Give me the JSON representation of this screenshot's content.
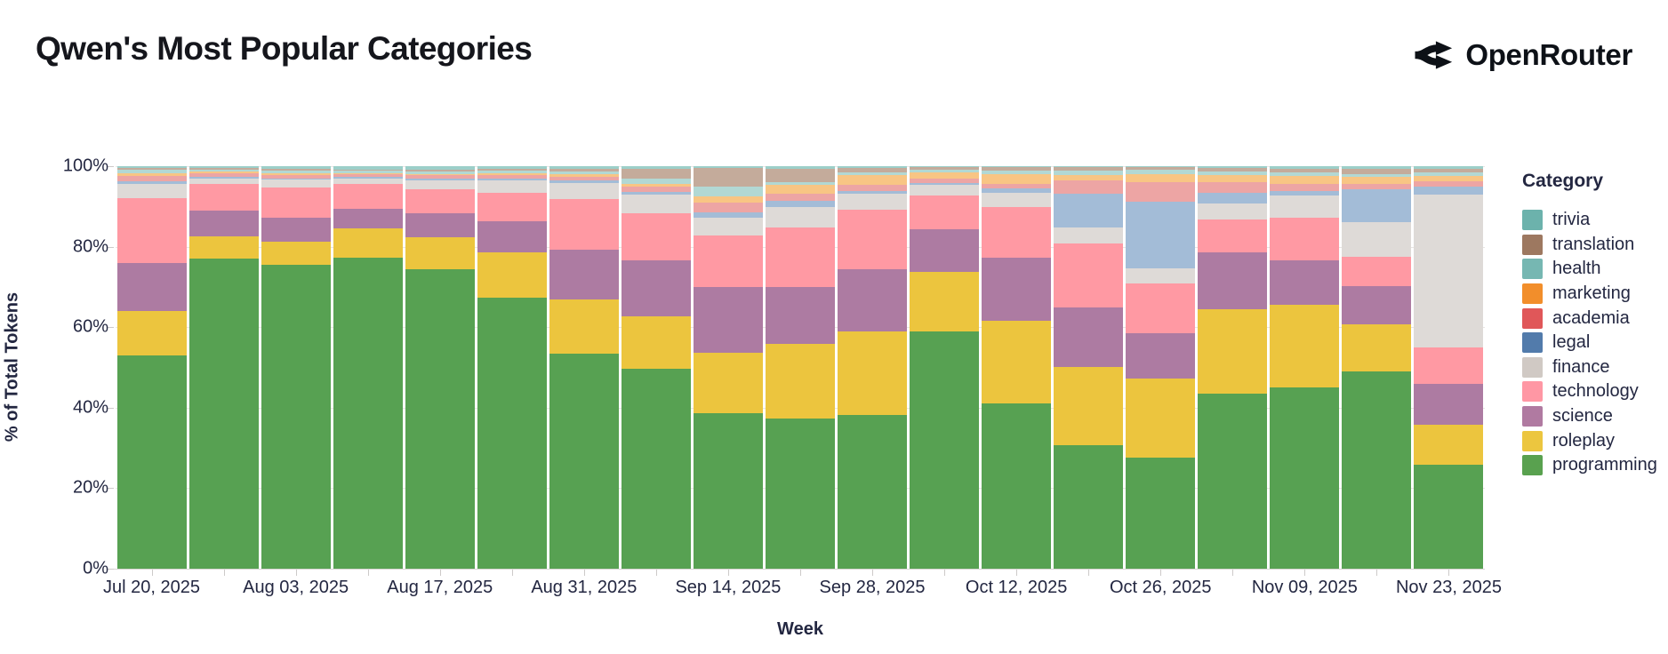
{
  "header": {
    "title": "Qwen's Most Popular Categories",
    "brand": "OpenRouter"
  },
  "chart_data": {
    "type": "bar",
    "variant": "stacked-percent",
    "title": "Qwen's Most Popular Categories",
    "xlabel": "Week",
    "ylabel": "% of Total Tokens",
    "ylim": [
      0,
      100
    ],
    "y_tick_labels": [
      "0%",
      "20%",
      "40%",
      "60%",
      "80%",
      "100%"
    ],
    "legend_title": "Category",
    "legend_position": "right",
    "grid": "horizontal",
    "categories": [
      "Jul 20, 2025",
      "Jul 27, 2025",
      "Aug 03, 2025",
      "Aug 10, 2025",
      "Aug 17, 2025",
      "Aug 24, 2025",
      "Aug 31, 2025",
      "Sep 07, 2025",
      "Sep 14, 2025",
      "Sep 21, 2025",
      "Sep 28, 2025",
      "Oct 05, 2025",
      "Oct 12, 2025",
      "Oct 19, 2025",
      "Oct 26, 2025",
      "Nov 02, 2025",
      "Nov 09, 2025",
      "Nov 16, 2025",
      "Nov 23, 2025"
    ],
    "x_tick_labels_shown": [
      "Jul 20, 2025",
      "Aug 03, 2025",
      "Aug 17, 2025",
      "Aug 31, 2025",
      "Sep 14, 2025",
      "Sep 28, 2025",
      "Oct 12, 2025",
      "Oct 26, 2025",
      "Nov 09, 2025",
      "Nov 23, 2025"
    ],
    "x_label_every": 2,
    "stack_order_note": "series listed top-of-stack first (matches legend order)",
    "series": [
      {
        "name": "trivia",
        "swatch": "#6cb2ac",
        "fill": "#9ccfc9",
        "values": [
          0.4,
          0.5,
          0.6,
          0.8,
          0.9,
          0.7,
          0.6,
          0.6,
          0.5,
          0.7,
          0.5,
          0.3,
          0.3,
          0.3,
          0.3,
          0.4,
          0.6,
          0.7,
          0.6
        ]
      },
      {
        "name": "translation",
        "swatch": "#9d7860",
        "fill": "#c4ab9b",
        "values": [
          0.4,
          0.3,
          0.4,
          0.3,
          0.4,
          0.4,
          0.6,
          2.4,
          4.5,
          3.2,
          1.1,
          0.5,
          0.8,
          0.8,
          0.5,
          0.8,
          0.9,
          1.2,
          0.9
        ]
      },
      {
        "name": "health",
        "swatch": "#76b7b2",
        "fill": "#b2d8d4",
        "values": [
          1.0,
          0.6,
          0.7,
          0.6,
          0.6,
          0.7,
          0.8,
          1.3,
          2.5,
          0.8,
          0.5,
          0.8,
          0.9,
          1.1,
          1.2,
          1.0,
          1.0,
          0.8,
          0.9
        ]
      },
      {
        "name": "marketing",
        "swatch": "#f28e2b",
        "fill": "#f8c584",
        "values": [
          0.7,
          0.4,
          0.4,
          0.3,
          0.4,
          0.4,
          0.6,
          0.8,
          1.5,
          2.2,
          2.6,
          1.4,
          2.3,
          1.3,
          2.0,
          1.8,
          2.0,
          1.6,
          1.3
        ]
      },
      {
        "name": "academia",
        "swatch": "#e05759",
        "fill": "#eda5a4",
        "values": [
          1.3,
          0.8,
          0.9,
          0.7,
          0.8,
          0.9,
          1.0,
          1.2,
          2.5,
          1.7,
          1.4,
          1.2,
          1.2,
          3.3,
          4.8,
          2.6,
          1.7,
          1.5,
          1.3
        ]
      },
      {
        "name": "legal",
        "swatch": "#527bab",
        "fill": "#a3bcd7",
        "values": [
          0.7,
          0.4,
          0.4,
          0.3,
          0.4,
          0.5,
          0.6,
          0.7,
          1.3,
          1.6,
          0.8,
          0.5,
          1.1,
          8.4,
          16.5,
          2.7,
          1.1,
          8.1,
          2.0
        ]
      },
      {
        "name": "finance",
        "swatch": "#d0c9c4",
        "fill": "#dedad7",
        "values": [
          3.5,
          1.5,
          1.8,
          1.5,
          2.2,
          3.0,
          4.0,
          4.6,
          4.4,
          5.0,
          3.9,
          2.6,
          3.6,
          4.0,
          3.8,
          3.9,
          5.5,
          8.7,
          38.0
        ]
      },
      {
        "name": "technology",
        "swatch": "#ff97a4",
        "fill": "#ff99a3",
        "values": [
          16.0,
          6.5,
          7.5,
          6.1,
          5.9,
          7.0,
          12.6,
          11.8,
          12.8,
          14.8,
          14.9,
          8.4,
          12.5,
          15.9,
          12.4,
          8.3,
          10.5,
          7.1,
          9.0
        ]
      },
      {
        "name": "science",
        "swatch": "#b07aa1",
        "fill": "#ad7ba2",
        "values": [
          12.0,
          6.5,
          6.0,
          4.9,
          6.0,
          7.7,
          12.4,
          13.9,
          16.4,
          14.2,
          15.3,
          10.6,
          15.8,
          14.8,
          11.3,
          14.0,
          11.2,
          9.6,
          10.3
        ]
      },
      {
        "name": "roleplay",
        "swatch": "#ecc63f",
        "fill": "#ecc53e",
        "values": [
          11.0,
          5.5,
          5.8,
          7.2,
          8.0,
          11.4,
          13.4,
          13.0,
          15.0,
          18.5,
          20.9,
          14.7,
          20.5,
          19.5,
          19.6,
          21.0,
          20.5,
          11.7,
          9.9
        ]
      },
      {
        "name": "programming",
        "swatch": "#59a14f",
        "fill": "#57a152",
        "values": [
          53.0,
          77.0,
          75.5,
          77.3,
          74.4,
          67.3,
          53.4,
          49.7,
          38.6,
          37.3,
          38.1,
          59.0,
          41.0,
          30.6,
          27.6,
          43.5,
          45.0,
          49.0,
          25.8
        ]
      }
    ]
  }
}
